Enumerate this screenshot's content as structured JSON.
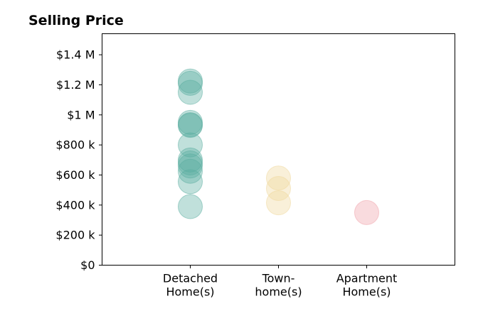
{
  "chart_data": {
    "type": "scatter",
    "title": "Selling Price",
    "xlabel": "",
    "ylabel": "",
    "categories": [
      "Detached\nHome(s)",
      "Town-\nhome(s)",
      "Apartment\nHome(s)"
    ],
    "xlim": [
      0,
      4
    ],
    "ylim": [
      0,
      1540000
    ],
    "yticks": [
      0,
      200000,
      400000,
      600000,
      800000,
      1000000,
      1200000,
      1400000
    ],
    "ytick_labels": [
      "$0",
      "$200 k",
      "$400 k",
      "$600 k",
      "$800 k",
      "$1 M",
      "$1.2 M",
      "$1.4 M"
    ],
    "grid": false,
    "legend": "none",
    "series": [
      {
        "category": "Detached\nHome(s)",
        "x": 1,
        "color": "#5aaea0",
        "values": [
          1225000,
          1210000,
          1150000,
          950000,
          935000,
          930000,
          800000,
          700000,
          680000,
          660000,
          625000,
          555000,
          390000
        ]
      },
      {
        "category": "Town-\nhome(s)",
        "x": 2,
        "color": "#f0d79a",
        "values": [
          580000,
          510000,
          415000
        ]
      },
      {
        "category": "Apartment\nHome(s)",
        "x": 3,
        "color": "#f0a0a8",
        "values": [
          350000
        ]
      }
    ]
  }
}
